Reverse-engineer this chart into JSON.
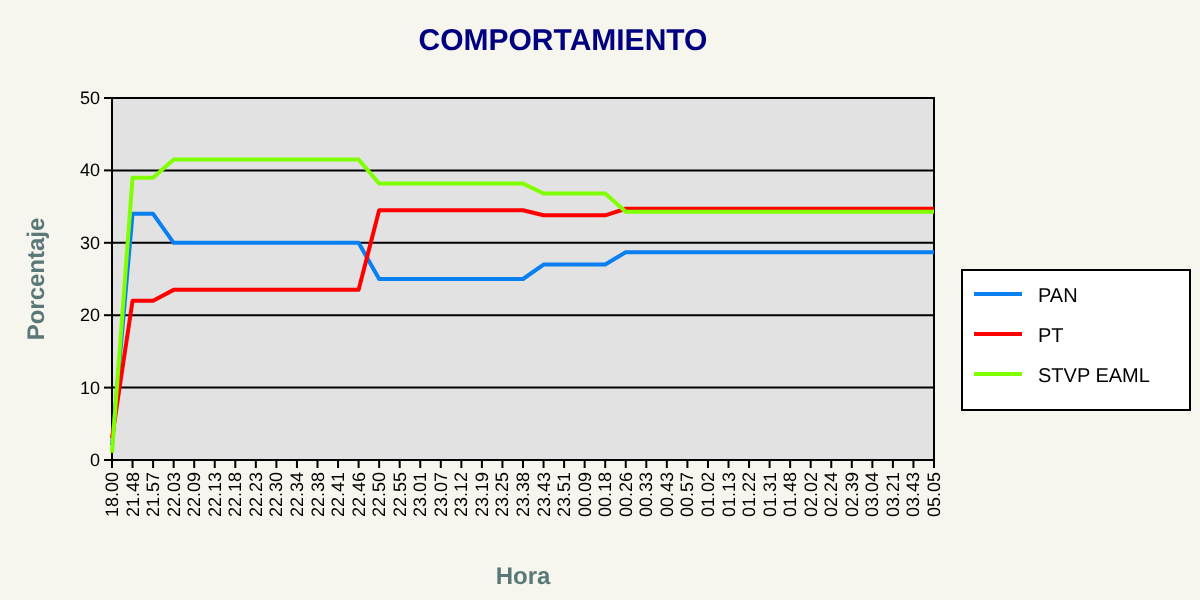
{
  "chart_data": {
    "type": "line",
    "title": "COMPORTAMIENTO",
    "xlabel": "Hora",
    "ylabel": "Porcentaje",
    "categories": [
      "18.00",
      "21.48",
      "21.57",
      "22.03",
      "22.09",
      "22.13",
      "22.18",
      "22.23",
      "22.30",
      "22.34",
      "22.38",
      "22.41",
      "22.46",
      "22.50",
      "22.55",
      "23.01",
      "23.07",
      "23.12",
      "23.19",
      "23.25",
      "23.38",
      "23.43",
      "23.51",
      "00.09",
      "00.18",
      "00.26",
      "00.33",
      "00.43",
      "00.57",
      "01.02",
      "01.13",
      "01.22",
      "01.31",
      "01.48",
      "02.02",
      "02.24",
      "02.39",
      "03.04",
      "03.21",
      "03.43",
      "05.05"
    ],
    "series": [
      {
        "name": "PAN",
        "color": "#0a7ff0",
        "values": [
          2,
          34,
          34,
          30,
          30,
          30,
          30,
          30,
          30,
          30,
          30,
          30,
          30,
          25,
          25,
          25,
          25,
          25,
          25,
          25,
          25,
          27,
          27,
          27,
          27,
          28.7,
          28.7,
          28.7,
          28.7,
          28.7,
          28.7,
          28.7,
          28.7,
          28.7,
          28.7,
          28.7,
          28.7,
          28.7,
          28.7,
          28.7,
          28.7
        ]
      },
      {
        "name": "PT",
        "color": "#ff0000",
        "values": [
          3,
          22,
          22,
          23.5,
          23.5,
          23.5,
          23.5,
          23.5,
          23.5,
          23.5,
          23.5,
          23.5,
          23.5,
          34.5,
          34.5,
          34.5,
          34.5,
          34.5,
          34.5,
          34.5,
          34.5,
          33.8,
          33.8,
          33.8,
          33.8,
          34.7,
          34.7,
          34.7,
          34.7,
          34.7,
          34.7,
          34.7,
          34.7,
          34.7,
          34.7,
          34.7,
          34.7,
          34.7,
          34.7,
          34.7,
          34.7
        ]
      },
      {
        "name": "STVP EAML",
        "color": "#80ff00",
        "values": [
          1,
          39,
          39,
          41.5,
          41.5,
          41.5,
          41.5,
          41.5,
          41.5,
          41.5,
          41.5,
          41.5,
          41.5,
          38.2,
          38.2,
          38.2,
          38.2,
          38.2,
          38.2,
          38.2,
          38.2,
          36.8,
          36.8,
          36.8,
          36.8,
          34.3,
          34.3,
          34.3,
          34.3,
          34.3,
          34.3,
          34.3,
          34.3,
          34.3,
          34.3,
          34.3,
          34.3,
          34.3,
          34.3,
          34.3,
          34.3
        ]
      }
    ],
    "ylim": [
      0,
      50
    ],
    "yticks": [
      0,
      10,
      20,
      30,
      40,
      50
    ],
    "grid": "y",
    "legend": "right",
    "line_style": "solid",
    "marker": "none"
  }
}
